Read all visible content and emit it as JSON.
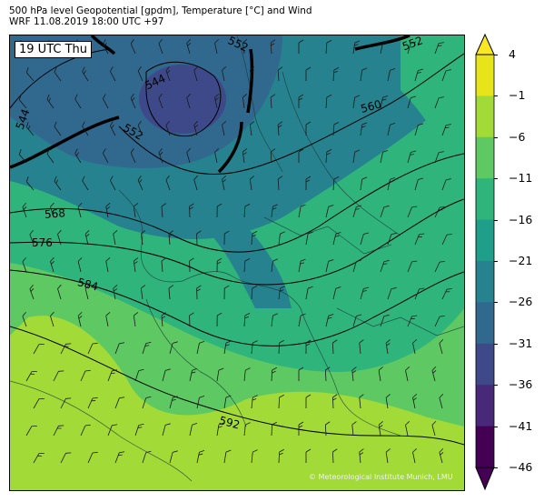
{
  "title": {
    "line1": "500 hPa level Geopotential [gpdm], Temperature [°C] and Wind",
    "line2": "WRF 11.08.2019 18:00 UTC +97"
  },
  "map": {
    "time_label": "19 UTC Thu",
    "copyright": "© Meteorological Institute Munich, LMU",
    "contour_labels": [
      "552",
      "552",
      "544",
      "544",
      "552",
      "560",
      "568",
      "576",
      "584",
      "592"
    ]
  },
  "colorbar": {
    "ticks": [
      "4",
      "−1",
      "−6",
      "−11",
      "−16",
      "−21",
      "−26",
      "−31",
      "−36",
      "−41",
      "−46"
    ],
    "colors": [
      "#e7e419",
      "#a2da37",
      "#5ec962",
      "#2fb47c",
      "#1f9e89",
      "#26828e",
      "#31688e",
      "#3e4989",
      "#482878",
      "#440154"
    ]
  }
}
